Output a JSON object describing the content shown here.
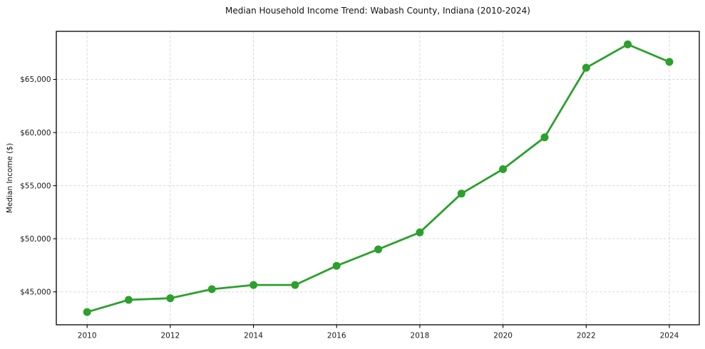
{
  "chart_data": {
    "type": "line",
    "title": "Median Household Income Trend: Wabash County, Indiana (2010-2024)",
    "xlabel": "",
    "ylabel": "Median Income ($)",
    "series": [
      {
        "name": "Median household income",
        "x": [
          2010,
          2011,
          2012,
          2013,
          2014,
          2015,
          2016,
          2017,
          2018,
          2019,
          2020,
          2021,
          2022,
          2023,
          2024
        ],
        "values": [
          43100,
          44250,
          44400,
          45250,
          45650,
          45650,
          47450,
          49000,
          50600,
          54250,
          56550,
          59550,
          66100,
          68300,
          66650
        ]
      }
    ],
    "x_ticks": {
      "values": [
        2010,
        2012,
        2014,
        2016,
        2018,
        2020,
        2022,
        2024
      ],
      "labels": [
        "2010",
        "2012",
        "2014",
        "2016",
        "2018",
        "2020",
        "2022",
        "2024"
      ]
    },
    "y_ticks": {
      "values": [
        45000,
        50000,
        55000,
        60000,
        65000
      ],
      "labels": [
        "$45,000",
        "$50,000",
        "$55,000",
        "$60,000",
        "$65,000"
      ]
    },
    "xlim": [
      2009.26,
      2024.72
    ],
    "ylim": [
      41900,
      69530
    ],
    "grid": true,
    "grid_style": "dashed",
    "legend": false,
    "marker": "circle",
    "colors": {
      "line": "#2ca02c",
      "grid": "#d6d6d6",
      "axis": "#000000",
      "text": "#1a1a1a",
      "background": "#ffffff"
    }
  }
}
